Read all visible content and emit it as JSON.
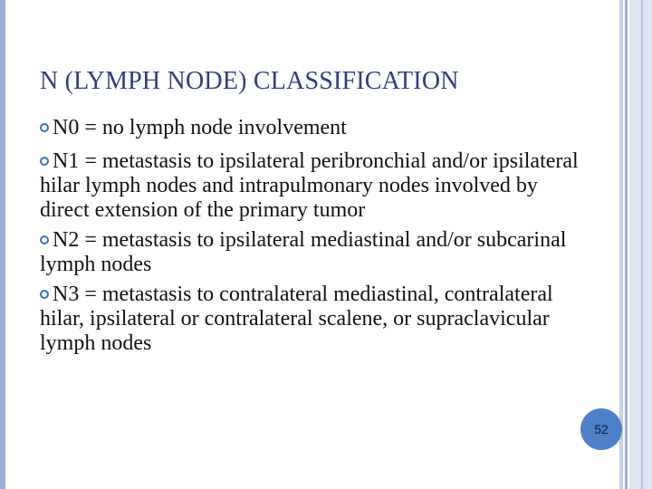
{
  "slide": {
    "title": "N (LYMPH NODE) CLASSIFICATION",
    "bullets": [
      "N0 = no lymph node involvement",
      "N1 = metastasis to ipsilateral peribronchial and/or ipsilateral hilar lymph nodes and intrapulmonary nodes involved by direct extension of the primary tumor",
      "N2 = metastasis to ipsilateral mediastinal and/or subcarinal lymph nodes",
      "N3 = metastasis to contralateral mediastinal, contralateral hilar, ipsilateral or contralateral scalene, or supraclavicular lymph nodes"
    ],
    "page_number": "52"
  },
  "colors": {
    "title": "#2f3f7a",
    "bullet": "#3f6fbd",
    "badge": "#4f7fc8",
    "border": "#9eb0d8"
  }
}
